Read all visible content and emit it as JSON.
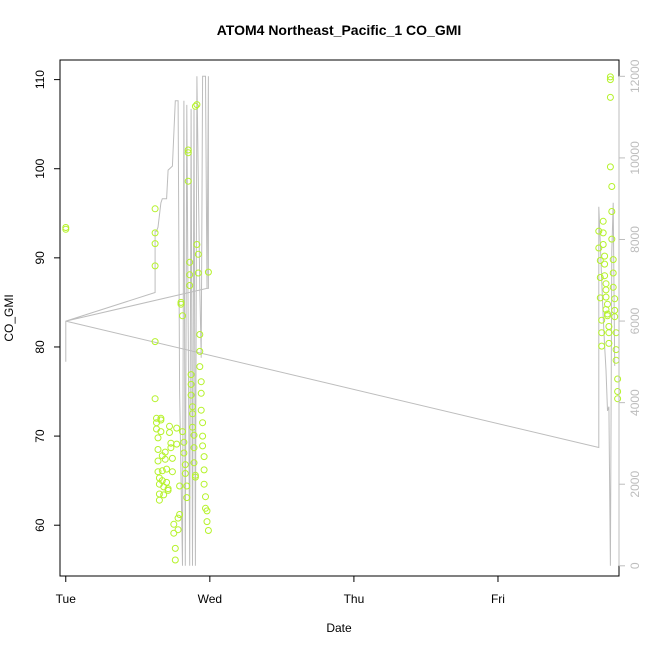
{
  "chart_data": {
    "type": "scatter",
    "title": "ATOM4 Northeast_Pacific_1 CO_GMI",
    "xlabel": "Date",
    "ylabel": "CO_GMI",
    "x_ticks": [
      {
        "label": "Tue",
        "value": 0
      },
      {
        "label": "Wed",
        "value": 1
      },
      {
        "label": "Thu",
        "value": 2
      },
      {
        "label": "Fri",
        "value": 3
      }
    ],
    "xlim": [
      -0.04,
      3.84
    ],
    "ylim": [
      54.3,
      112.2
    ],
    "y_ticks": [
      60,
      70,
      80,
      90,
      100,
      110
    ],
    "y2lim": [
      -250,
      12400
    ],
    "y2_ticks": [
      0,
      2000,
      4000,
      6000,
      8000,
      10000,
      12000
    ],
    "point_color": "#b5f22a",
    "line_color": "#bdbdbd",
    "series": [
      {
        "values_x": [
          0.0,
          0.0,
          0.62,
          0.62,
          0.62,
          0.62,
          0.62,
          0.62,
          0.63,
          0.63,
          0.63,
          0.64,
          0.64,
          0.64,
          0.64,
          0.65,
          0.65,
          0.65,
          0.65,
          0.66,
          0.66,
          0.66,
          0.67,
          0.67,
          0.67,
          0.68,
          0.68,
          0.69,
          0.69,
          0.7,
          0.7,
          0.71,
          0.71,
          0.72,
          0.72,
          0.73,
          0.73,
          0.74,
          0.74,
          0.75,
          0.75,
          0.76,
          0.76,
          0.77,
          0.77,
          0.78,
          0.78,
          0.79,
          0.79,
          0.8,
          0.8,
          0.81,
          0.81,
          0.82,
          0.82,
          0.83,
          0.83,
          0.84,
          0.84,
          0.85,
          0.85,
          0.85,
          0.86,
          0.86,
          0.86,
          0.87,
          0.87,
          0.87,
          0.88,
          0.88,
          0.88,
          0.89,
          0.89,
          0.89,
          0.9,
          0.9,
          0.9,
          0.91,
          0.91,
          0.92,
          0.92,
          0.93,
          0.93,
          0.93,
          0.94,
          0.94,
          0.94,
          0.95,
          0.95,
          0.95,
          0.96,
          0.96,
          0.96,
          0.97,
          0.97,
          0.98,
          0.98,
          0.99,
          0.99,
          3.7,
          3.7,
          3.71,
          3.71,
          3.71,
          3.72,
          3.72,
          3.72,
          3.73,
          3.73,
          3.73,
          3.74,
          3.74,
          3.74,
          3.75,
          3.75,
          3.75,
          3.75,
          3.76,
          3.76,
          3.76,
          3.77,
          3.77,
          3.77,
          3.78,
          3.78,
          3.78,
          3.78,
          3.79,
          3.79,
          3.79,
          3.8,
          3.8,
          3.8,
          3.81,
          3.81,
          3.81,
          3.82,
          3.82,
          3.82,
          3.83,
          3.83,
          3.83
        ],
        "values_y": [
          93.4,
          93.2,
          95.5,
          92.8,
          91.6,
          89.1,
          80.6,
          74.2,
          72.0,
          71.5,
          70.8,
          69.8,
          68.5,
          67.2,
          66.0,
          65.3,
          64.6,
          63.5,
          62.8,
          72.0,
          71.8,
          70.5,
          67.8,
          66.1,
          65.0,
          64.3,
          63.4,
          68.2,
          67.4,
          66.3,
          64.8,
          63.9,
          64.1,
          71.1,
          70.4,
          69.2,
          68.7,
          67.5,
          66.0,
          60.1,
          59.1,
          57.4,
          56.1,
          69.1,
          70.9,
          60.8,
          59.5,
          61.2,
          64.4,
          85.0,
          84.8,
          83.5,
          70.5,
          69.3,
          68.1,
          66.8,
          65.8,
          64.4,
          63.1,
          102.1,
          101.8,
          98.6,
          89.5,
          88.1,
          86.9,
          76.9,
          75.8,
          74.6,
          73.3,
          72.5,
          71.0,
          70.1,
          68.7,
          67.0,
          65.4,
          65.6,
          107.0,
          107.2,
          91.5,
          90.4,
          88.3,
          81.4,
          79.5,
          77.8,
          76.1,
          74.8,
          72.9,
          71.5,
          70.0,
          68.9,
          67.7,
          66.2,
          64.6,
          63.2,
          61.9,
          61.6,
          60.4,
          59.4,
          88.4,
          93.0,
          91.1,
          89.7,
          87.8,
          85.5,
          83.0,
          81.6,
          80.1,
          92.8,
          94.1,
          91.5,
          90.2,
          89.3,
          88.0,
          87.1,
          86.4,
          85.6,
          84.2,
          83.7,
          84.8,
          83.5,
          82.3,
          81.6,
          80.4,
          110.3,
          110.0,
          108.0,
          100.2,
          98.0,
          95.2,
          92.1,
          89.8,
          88.3,
          86.7,
          85.4,
          84.1,
          83.4,
          81.6,
          79.7,
          78.5,
          76.4,
          75.0,
          74.2
        ]
      },
      {
        "name": "",
        "axis": "right",
        "line_x": [
          0.0,
          0.0,
          0.62,
          0.62,
          0.63,
          0.64,
          0.66,
          0.67,
          0.7,
          0.71,
          0.74,
          0.76,
          0.78,
          0.79,
          0.81,
          0.82,
          0.83,
          0.84,
          0.86,
          0.87,
          0.88,
          0.89,
          0.9,
          0.91,
          0.93,
          0.94,
          0.95,
          0.97,
          0.98,
          0.99,
          0.99,
          0.98,
          0.0,
          3.7,
          3.7,
          3.71,
          3.72,
          3.73,
          3.74,
          3.75,
          3.76,
          3.77,
          3.78,
          3.79,
          3.8,
          3.81
        ],
        "line_y": [
          5000,
          6000,
          6700,
          8200,
          8200,
          8300,
          8900,
          9000,
          9000,
          9700,
          9800,
          11400,
          11400,
          4300,
          0,
          11400,
          0,
          11300,
          0,
          11200,
          0,
          11200,
          0,
          12000,
          6800,
          5100,
          12000,
          12000,
          6800,
          6800,
          12000,
          6800,
          6000,
          2900,
          8800,
          7900,
          7000,
          6100,
          5400,
          4800,
          3800,
          3900,
          0,
          7700,
          8900,
          4900
        ]
      }
    ]
  }
}
